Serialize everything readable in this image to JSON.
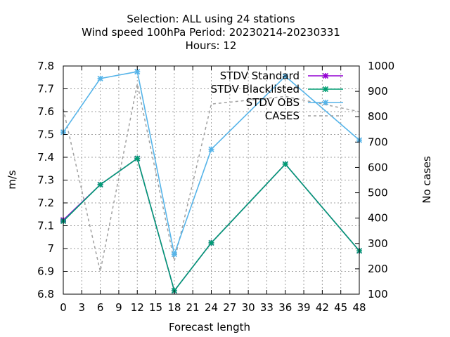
{
  "chart_data": {
    "type": "line",
    "title_lines": [
      "Selection: ALL using    24 stations",
      "Wind speed 100hPa   Period: 20230214-20230331",
      "Hours:  12"
    ],
    "xlabel": "Forecast length",
    "ylabel": "m/s",
    "y2label": "No cases",
    "xlim": [
      0,
      48
    ],
    "ylim": [
      6.8,
      7.8
    ],
    "y2lim": [
      100,
      1000
    ],
    "xticks": [
      "0",
      "3",
      "6",
      "9",
      "12",
      "15",
      "18",
      "21",
      "24",
      "27",
      "30",
      "33",
      "36",
      "39",
      "42",
      "45",
      "48"
    ],
    "yticks": [
      "6.8",
      "6.9",
      "7",
      "7.1",
      "7.2",
      "7.3",
      "7.4",
      "7.5",
      "7.6",
      "7.7",
      "7.8"
    ],
    "y2ticks": [
      "100",
      "200",
      "300",
      "400",
      "500",
      "600",
      "700",
      "800",
      "900",
      "1000"
    ],
    "grid": true,
    "legend_position": "top-right",
    "series": [
      {
        "name": "STDV Standard",
        "axis": "left",
        "color": "#9400d3",
        "dash": "none",
        "marker": "x-star",
        "x": [
          0,
          6,
          12,
          18,
          24,
          36,
          48
        ],
        "values": [
          7.125,
          7.28,
          7.395,
          6.815,
          7.025,
          7.37,
          6.99
        ]
      },
      {
        "name": "STDV Blacklisted",
        "axis": "left",
        "color": "#009e73",
        "dash": "none",
        "marker": "x-star",
        "x": [
          0,
          6,
          12,
          18,
          24,
          36,
          48
        ],
        "values": [
          7.12,
          7.28,
          7.395,
          6.815,
          7.025,
          7.37,
          6.99
        ]
      },
      {
        "name": "STDV OBS",
        "axis": "left",
        "color": "#56b4e9",
        "dash": "none",
        "marker": "x-star",
        "x": [
          0,
          6,
          12,
          18,
          24,
          36,
          48
        ],
        "values": [
          7.51,
          7.745,
          7.775,
          6.975,
          7.435,
          7.755,
          7.475
        ]
      },
      {
        "name": "CASES",
        "axis": "right",
        "color": "#a0a0a0",
        "dash": "4,4",
        "marker": "none",
        "x": [
          0,
          6,
          12,
          18,
          24,
          36,
          48
        ],
        "values": [
          830,
          190,
          930,
          230,
          850,
          880,
          820
        ]
      }
    ]
  }
}
